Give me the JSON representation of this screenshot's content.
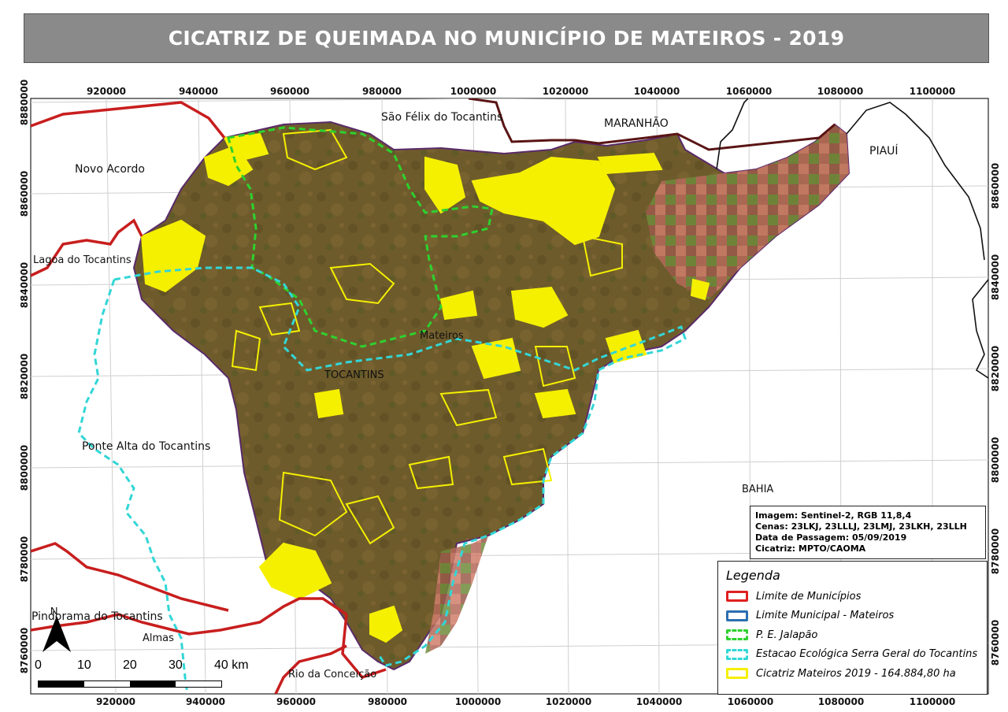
{
  "title": "CICATRIZ DE QUEIMADA NO MUNICÍPIO DE MATEIROS - 2019",
  "grid": {
    "x_ticks_top": [
      "920000",
      "940000",
      "960000",
      "980000",
      "1000000",
      "1020000",
      "1040000",
      "1060000",
      "1080000",
      "1100000"
    ],
    "x_ticks_bottom": [
      "920000",
      "940000",
      "960000",
      "980000",
      "1000000",
      "1020000",
      "1040000",
      "1060000",
      "1080000",
      "1100000"
    ],
    "y_ticks_left": [
      "8880000",
      "8860000",
      "8840000",
      "8820000",
      "8800000",
      "8780000",
      "8760000"
    ],
    "y_ticks_right": [
      "8860000",
      "8840000",
      "8820000",
      "8800000",
      "8780000",
      "8760000"
    ]
  },
  "places": {
    "sao_felix": "São Félix do Tocantins",
    "maranhao": "MARANHÃO",
    "piaui": "PIAUÍ",
    "novo_acordo": "Novo Acordo",
    "lagoa": "Lagoa do Tocantins",
    "mateiros": "Mateiros",
    "tocantins": "TOCANTINS",
    "ponte_alta": "Ponte Alta do Tocantins",
    "bahia": "BAHIA",
    "pindorama": "Pindorama do Tocantins",
    "almas": "Almas",
    "rio_conceicao": "Rio da Conceição"
  },
  "info": {
    "line1": "Imagem: Sentinel-2, RGB 11,8,4",
    "line2": "Cenas: 23LKJ, 23LLLJ, 23LMJ, 23LKH, 23LLH",
    "line3": "Data de Passagem: 05/09/2019",
    "line4": "Cicatriz: MPTO/CAOMA"
  },
  "legend": {
    "title": "Legenda",
    "items": [
      {
        "label": "Limite de Municípios",
        "color": "#e02020",
        "style": "solid"
      },
      {
        "label": "Limite Municipal - Mateiros",
        "color": "#2a6fb0",
        "style": "solid"
      },
      {
        "label": "P. E. Jalapão",
        "color": "#2ed12e",
        "style": "dashed"
      },
      {
        "label": "Estacao Ecológica Serra Geral do Tocantins",
        "color": "#33d6d6",
        "style": "dashed"
      },
      {
        "label": "Cicatriz Mateiros 2019 - 164.884,80 ha",
        "color": "#f5f000",
        "style": "solid"
      }
    ]
  },
  "scale": {
    "labels": [
      "0",
      "10",
      "20",
      "30",
      "40 km"
    ],
    "north": "N"
  },
  "colors": {
    "title_bg": "#8a8a8a",
    "terrain": "#6b5a2c",
    "burn": "#f5f000",
    "municipal_boundary": "#c81e1e",
    "state_boundary": "#5a1414"
  }
}
